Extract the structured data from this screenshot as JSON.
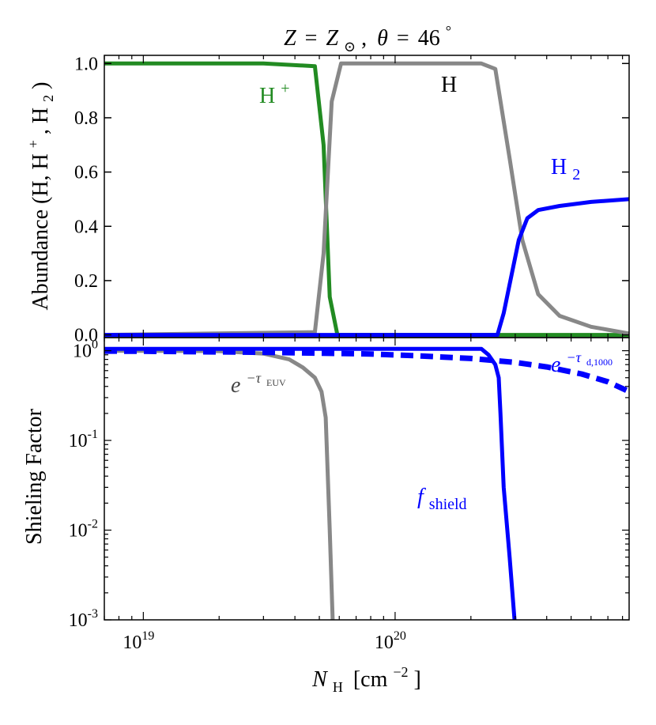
{
  "title": {
    "text": "Z = Z⊙, θ = 46°",
    "variable": "Z",
    "value_symbol": "Z",
    "sub": "⊙",
    "angle_symbol": "θ",
    "angle_value": "46",
    "degree": "°"
  },
  "chart_data": [
    {
      "panel": "top",
      "type": "line",
      "xscale": "log",
      "xlim": [
        7e+18,
        8.5e+20
      ],
      "ylim": [
        -0.01,
        1.03
      ],
      "ylabel": "Abundance (H, H⁺, H₂)",
      "ylabel_parts": {
        "prefix": "Abundance (H, H",
        "plus": "+",
        "mid": ", H",
        "two": "2",
        "suffix": ")"
      },
      "yticks": [
        0.0,
        0.2,
        0.4,
        0.6,
        0.8,
        1.0
      ],
      "ytick_labels": [
        "0.0",
        "0.2",
        "0.4",
        "0.6",
        "0.8",
        "1.0"
      ],
      "series": [
        {
          "name": "H+",
          "label_base": "H",
          "label_sup": "+",
          "color": "#228b22",
          "points": [
            [
              7e+18,
              1.0
            ],
            [
              3e+19,
              1.0
            ],
            [
              4.8e+19,
              0.99
            ],
            [
              5.2e+19,
              0.7
            ],
            [
              5.5e+19,
              0.14
            ],
            [
              5.9e+19,
              0.0
            ],
            [
              8.5e+20,
              0.0
            ]
          ]
        },
        {
          "name": "H",
          "label_base": "H",
          "color": "#888888",
          "points": [
            [
              7e+18,
              0.0
            ],
            [
              4.8e+19,
              0.01
            ],
            [
              5.2e+19,
              0.3
            ],
            [
              5.6e+19,
              0.86
            ],
            [
              6.1e+19,
              1.0
            ],
            [
              2.2e+20,
              1.0
            ],
            [
              2.5e+20,
              0.98
            ],
            [
              2.85e+20,
              0.65
            ],
            [
              3.2e+20,
              0.35
            ],
            [
              3.7e+20,
              0.15
            ],
            [
              4.5e+20,
              0.07
            ],
            [
              6e+20,
              0.03
            ],
            [
              8.5e+20,
              0.005
            ]
          ]
        },
        {
          "name": "H2",
          "label_base": "H",
          "label_sub": "2",
          "color": "#0000ff",
          "points": [
            [
              7e+18,
              0.0
            ],
            [
              2.55e+20,
              0.0
            ],
            [
              2.7e+20,
              0.08
            ],
            [
              2.9e+20,
              0.22
            ],
            [
              3.1e+20,
              0.35
            ],
            [
              3.35e+20,
              0.43
            ],
            [
              3.7e+20,
              0.46
            ],
            [
              4.5e+20,
              0.475
            ],
            [
              6e+20,
              0.49
            ],
            [
              8.5e+20,
              0.5
            ]
          ]
        }
      ]
    },
    {
      "panel": "bottom",
      "type": "line",
      "xscale": "log",
      "yscale": "log",
      "xlim": [
        7e+18,
        8.5e+20
      ],
      "ylim": [
        0.001,
        1.4
      ],
      "xlabel": "N_H [cm^-2]",
      "xlabel_parts": {
        "N": "N",
        "Nsub": "H",
        "unit": "[cm",
        "exp": "−2",
        "close": "]"
      },
      "ylabel": "Shieling Factor",
      "xticks": [
        1e+19,
        1e+20
      ],
      "xtick_labels": [
        {
          "base": "10",
          "exp": "19"
        },
        {
          "base": "10",
          "exp": "20"
        }
      ],
      "yticks": [
        1,
        0.1,
        0.01,
        0.001
      ],
      "ytick_labels": [
        {
          "base": "10",
          "exp": "0"
        },
        {
          "base": "10",
          "exp": "-1"
        },
        {
          "base": "10",
          "exp": "-2"
        },
        {
          "base": "10",
          "exp": "-3"
        }
      ],
      "series": [
        {
          "name": "e^-tau_EUV",
          "label_base": "e",
          "label_exp_prefix": "−τ",
          "label_exp_sub": "EUV",
          "color": "#888888",
          "style": "solid",
          "points": [
            [
              7e+18,
              1.0
            ],
            [
              2e+19,
              0.99
            ],
            [
              3e+19,
              0.93
            ],
            [
              3.8e+19,
              0.8
            ],
            [
              4.3e+19,
              0.65
            ],
            [
              4.8e+19,
              0.5
            ],
            [
              5.1e+19,
              0.35
            ],
            [
              5.3e+19,
              0.18
            ],
            [
              5.5e+19,
              0.01
            ],
            [
              5.65e+19,
              0.001
            ]
          ]
        },
        {
          "name": "f_shield",
          "label_base": "f",
          "label_sub": "shield",
          "color": "#0000ff",
          "style": "solid",
          "points": [
            [
              7e+18,
              1.05
            ],
            [
              2.2e+20,
              1.05
            ],
            [
              2.35e+20,
              0.9
            ],
            [
              2.5e+20,
              0.7
            ],
            [
              2.58e+20,
              0.5
            ],
            [
              2.62e+20,
              0.2
            ],
            [
              2.7e+20,
              0.03
            ],
            [
              2.85e+20,
              0.005
            ],
            [
              2.98e+20,
              0.001
            ]
          ]
        },
        {
          "name": "e^-tau_d,1000",
          "label_base": "e",
          "label_exp_prefix": "−τ",
          "label_exp_sub": "d,1000",
          "color": "#0000ff",
          "style": "dashed",
          "points": [
            [
              7e+18,
              0.99
            ],
            [
              1e+19,
              0.985
            ],
            [
              3e+19,
              0.96
            ],
            [
              8e+19,
              0.92
            ],
            [
              1.2e+20,
              0.88
            ],
            [
              2e+20,
              0.82
            ],
            [
              3e+20,
              0.74
            ],
            [
              4e+20,
              0.66
            ],
            [
              5.5e+20,
              0.55
            ],
            [
              7e+20,
              0.45
            ],
            [
              8.5e+20,
              0.35
            ]
          ]
        }
      ]
    }
  ]
}
